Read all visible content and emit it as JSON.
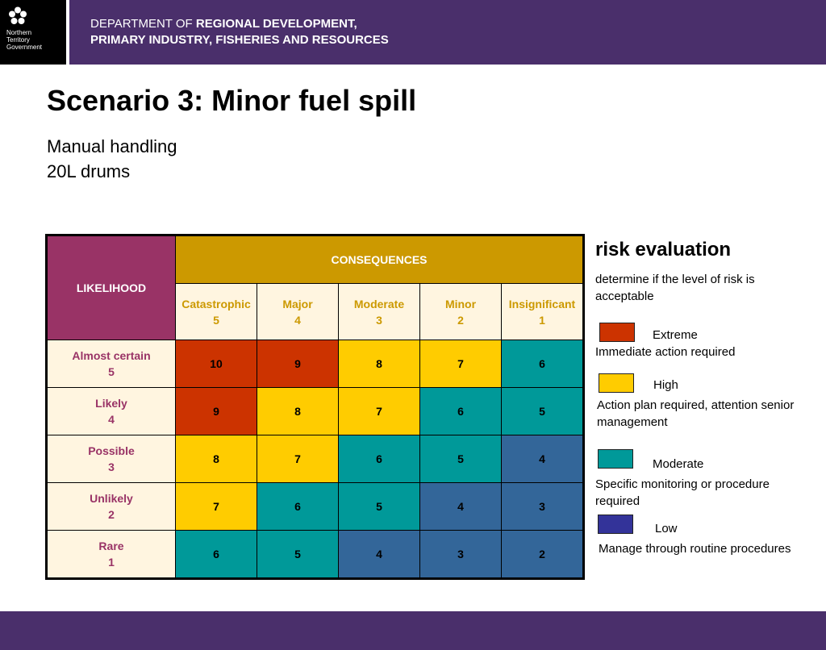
{
  "header": {
    "logo_text": [
      "Northern",
      "Territory",
      "Government"
    ],
    "dept_line1_plain": "DEPARTMENT OF ",
    "dept_line1_bold": "REGIONAL DEVELOPMENT,",
    "dept_line2_bold": "PRIMARY INDUSTRY, FISHERIES AND RESOURCES"
  },
  "title": "Scenario 3: Minor fuel spill",
  "subtitle": [
    "Manual handling",
    "20L drums"
  ],
  "matrix": {
    "likelihood_label": "LIKELIHOOD",
    "consequences_label": "CONSEQUENCES",
    "columns": [
      {
        "name": "Catastrophic",
        "score": "5"
      },
      {
        "name": "Major",
        "score": "4"
      },
      {
        "name": "Moderate",
        "score": "3"
      },
      {
        "name": "Minor",
        "score": "2"
      },
      {
        "name": "Insignificant",
        "score": "1"
      }
    ],
    "rows": [
      {
        "name": "Almost certain",
        "score": "5",
        "cells": [
          {
            "value": "10",
            "level": "extreme"
          },
          {
            "value": "9",
            "level": "extreme"
          },
          {
            "value": "8",
            "level": "high"
          },
          {
            "value": "7",
            "level": "high"
          },
          {
            "value": "6",
            "level": "moderate"
          }
        ]
      },
      {
        "name": "Likely",
        "score": "4",
        "cells": [
          {
            "value": "9",
            "level": "extreme"
          },
          {
            "value": "8",
            "level": "high"
          },
          {
            "value": "7",
            "level": "high"
          },
          {
            "value": "6",
            "level": "moderate"
          },
          {
            "value": "5",
            "level": "moderate"
          }
        ]
      },
      {
        "name": "Possible",
        "score": "3",
        "cells": [
          {
            "value": "8",
            "level": "high"
          },
          {
            "value": "7",
            "level": "high"
          },
          {
            "value": "6",
            "level": "moderate"
          },
          {
            "value": "5",
            "level": "moderate"
          },
          {
            "value": "4",
            "level": "low"
          }
        ]
      },
      {
        "name": "Unlikely",
        "score": "2",
        "cells": [
          {
            "value": "7",
            "level": "high"
          },
          {
            "value": "6",
            "level": "moderate"
          },
          {
            "value": "5",
            "level": "moderate"
          },
          {
            "value": "4",
            "level": "low"
          },
          {
            "value": "3",
            "level": "low"
          }
        ]
      },
      {
        "name": "Rare",
        "score": "1",
        "cells": [
          {
            "value": "6",
            "level": "moderate"
          },
          {
            "value": "5",
            "level": "moderate"
          },
          {
            "value": "4",
            "level": "low"
          },
          {
            "value": "3",
            "level": "low"
          },
          {
            "value": "2",
            "level": "low"
          }
        ]
      }
    ]
  },
  "risk_panel": {
    "title": "risk evaluation",
    "description": "determine if the level of risk is acceptable",
    "legend": [
      {
        "name": "Extreme",
        "description": "Immediate action required",
        "color": "#cc3300"
      },
      {
        "name": "High",
        "description": "Action plan required, attention senior management",
        "color": "#ffcc00"
      },
      {
        "name": "Moderate",
        "description": "Specific monitoring or procedure required",
        "color": "#009999"
      },
      {
        "name": "Low",
        "description": "Manage through routine procedures",
        "color": "#333399"
      }
    ]
  }
}
